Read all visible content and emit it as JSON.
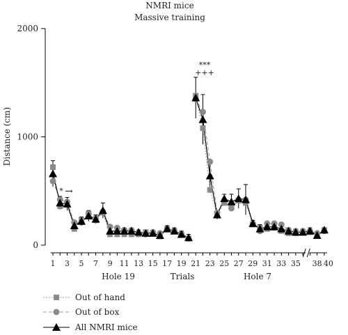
{
  "chart_data": {
    "type": "line",
    "title": "NMRI mice",
    "subtitle": "Massive training",
    "ylabel": "Distance (cm)",
    "xlabel": "Trials",
    "ylim": [
      0,
      2000
    ],
    "yticks": [
      0,
      1000,
      2000
    ],
    "xticks": [
      "1",
      "3",
      "5",
      "7",
      "9",
      "11",
      "13",
      "15",
      "17",
      "19",
      "21",
      "23",
      "25",
      "27",
      "29",
      "31",
      "33",
      "35",
      "38",
      "40"
    ],
    "phase_labels": [
      "Hole 19",
      "Hole 7"
    ],
    "annotations": {
      "star": "*",
      "arrow": "→",
      "stars3": "***",
      "plus3": "+++"
    },
    "legend": [
      {
        "name": "Out of hand",
        "marker": "square",
        "line": "dotted",
        "color": "#8a8a8a"
      },
      {
        "name": "Out of box",
        "marker": "circle",
        "line": "dashed",
        "color": "#8a8a8a"
      },
      {
        "name": "All NMRI mice",
        "marker": "triangle",
        "line": "solid",
        "color": "#000000"
      }
    ],
    "series": [
      {
        "name": "Out of hand",
        "segments": [
          {
            "x": [
              1,
              2,
              3,
              4,
              5,
              6,
              7,
              8,
              9,
              10,
              11,
              12,
              13,
              14,
              15,
              16,
              17,
              18,
              19,
              20
            ],
            "y": [
              720,
              360,
              380,
              150,
              230,
              290,
              230,
              300,
              100,
              100,
              100,
              100,
              100,
              120,
              110,
              80,
              150,
              130,
              100,
              60
            ]
          },
          {
            "x": [
              21,
              22,
              23,
              24,
              25,
              26,
              27,
              28,
              29,
              30,
              31,
              32,
              33,
              34,
              35,
              36,
              37,
              38,
              39
            ],
            "y": [
              1380,
              1080,
              510,
              280,
              390,
              360,
              410,
              390,
              190,
              160,
              150,
              160,
              130,
              110,
              110,
              120,
              120,
              90,
              140
            ]
          }
        ]
      },
      {
        "name": "Out of box",
        "segments": [
          {
            "x": [
              1,
              2,
              3,
              4,
              5,
              6,
              7,
              8,
              9,
              10,
              11,
              12,
              13,
              14,
              15,
              16,
              17,
              18,
              19,
              20
            ],
            "y": [
              590,
              420,
              400,
              210,
              210,
              290,
              250,
              310,
              170,
              160,
              140,
              140,
              110,
              100,
              120,
              110,
              150,
              130,
              100,
              60
            ]
          },
          {
            "x": [
              21,
              22,
              23,
              24,
              25,
              26,
              27,
              28,
              29,
              30,
              31,
              32,
              33,
              34,
              35,
              36,
              37,
              38,
              39
            ],
            "y": [
              1350,
              1230,
              770,
              300,
              410,
              340,
              420,
              420,
              200,
              130,
              200,
              200,
              190,
              140,
              130,
              130,
              130,
              110,
              130
            ]
          }
        ]
      },
      {
        "name": "All NMRI mice",
        "segments": [
          {
            "x": [
              1,
              2,
              3,
              4,
              5,
              6,
              7,
              8,
              9,
              10,
              11,
              12,
              13,
              14,
              15,
              16,
              17,
              18,
              19,
              20
            ],
            "y": [
              660,
              390,
              380,
              180,
              220,
              270,
              240,
              320,
              130,
              130,
              130,
              130,
              120,
              110,
              110,
              90,
              150,
              130,
              100,
              70
            ]
          },
          {
            "x": [
              21,
              22,
              23,
              24,
              25,
              26,
              27,
              28,
              29,
              30,
              31,
              32,
              33,
              34,
              35,
              36,
              37,
              38,
              39
            ],
            "y": [
              1360,
              1160,
              640,
              280,
              430,
              400,
              430,
              420,
              200,
              150,
              170,
              170,
              150,
              130,
              120,
              120,
              130,
              90,
              140
            ]
          }
        ]
      }
    ],
    "error_bars": {
      "x": [
        1,
        2,
        3,
        4,
        5,
        6,
        7,
        8,
        9,
        10,
        11,
        12,
        13,
        14,
        15,
        16,
        17,
        18,
        19,
        20,
        21,
        22,
        23,
        24,
        25,
        26,
        27,
        28,
        29,
        30,
        31,
        32,
        33,
        34,
        35,
        36,
        37,
        38,
        39
      ],
      "upper": [
        780,
        450,
        440,
        220,
        260,
        320,
        280,
        390,
        170,
        160,
        160,
        150,
        140,
        130,
        130,
        120,
        180,
        160,
        130,
        100,
        1550,
        1390,
        770,
        320,
        470,
        470,
        520,
        560,
        230,
        190,
        210,
        200,
        180,
        160,
        150,
        150,
        160,
        120,
        160
      ]
    }
  }
}
